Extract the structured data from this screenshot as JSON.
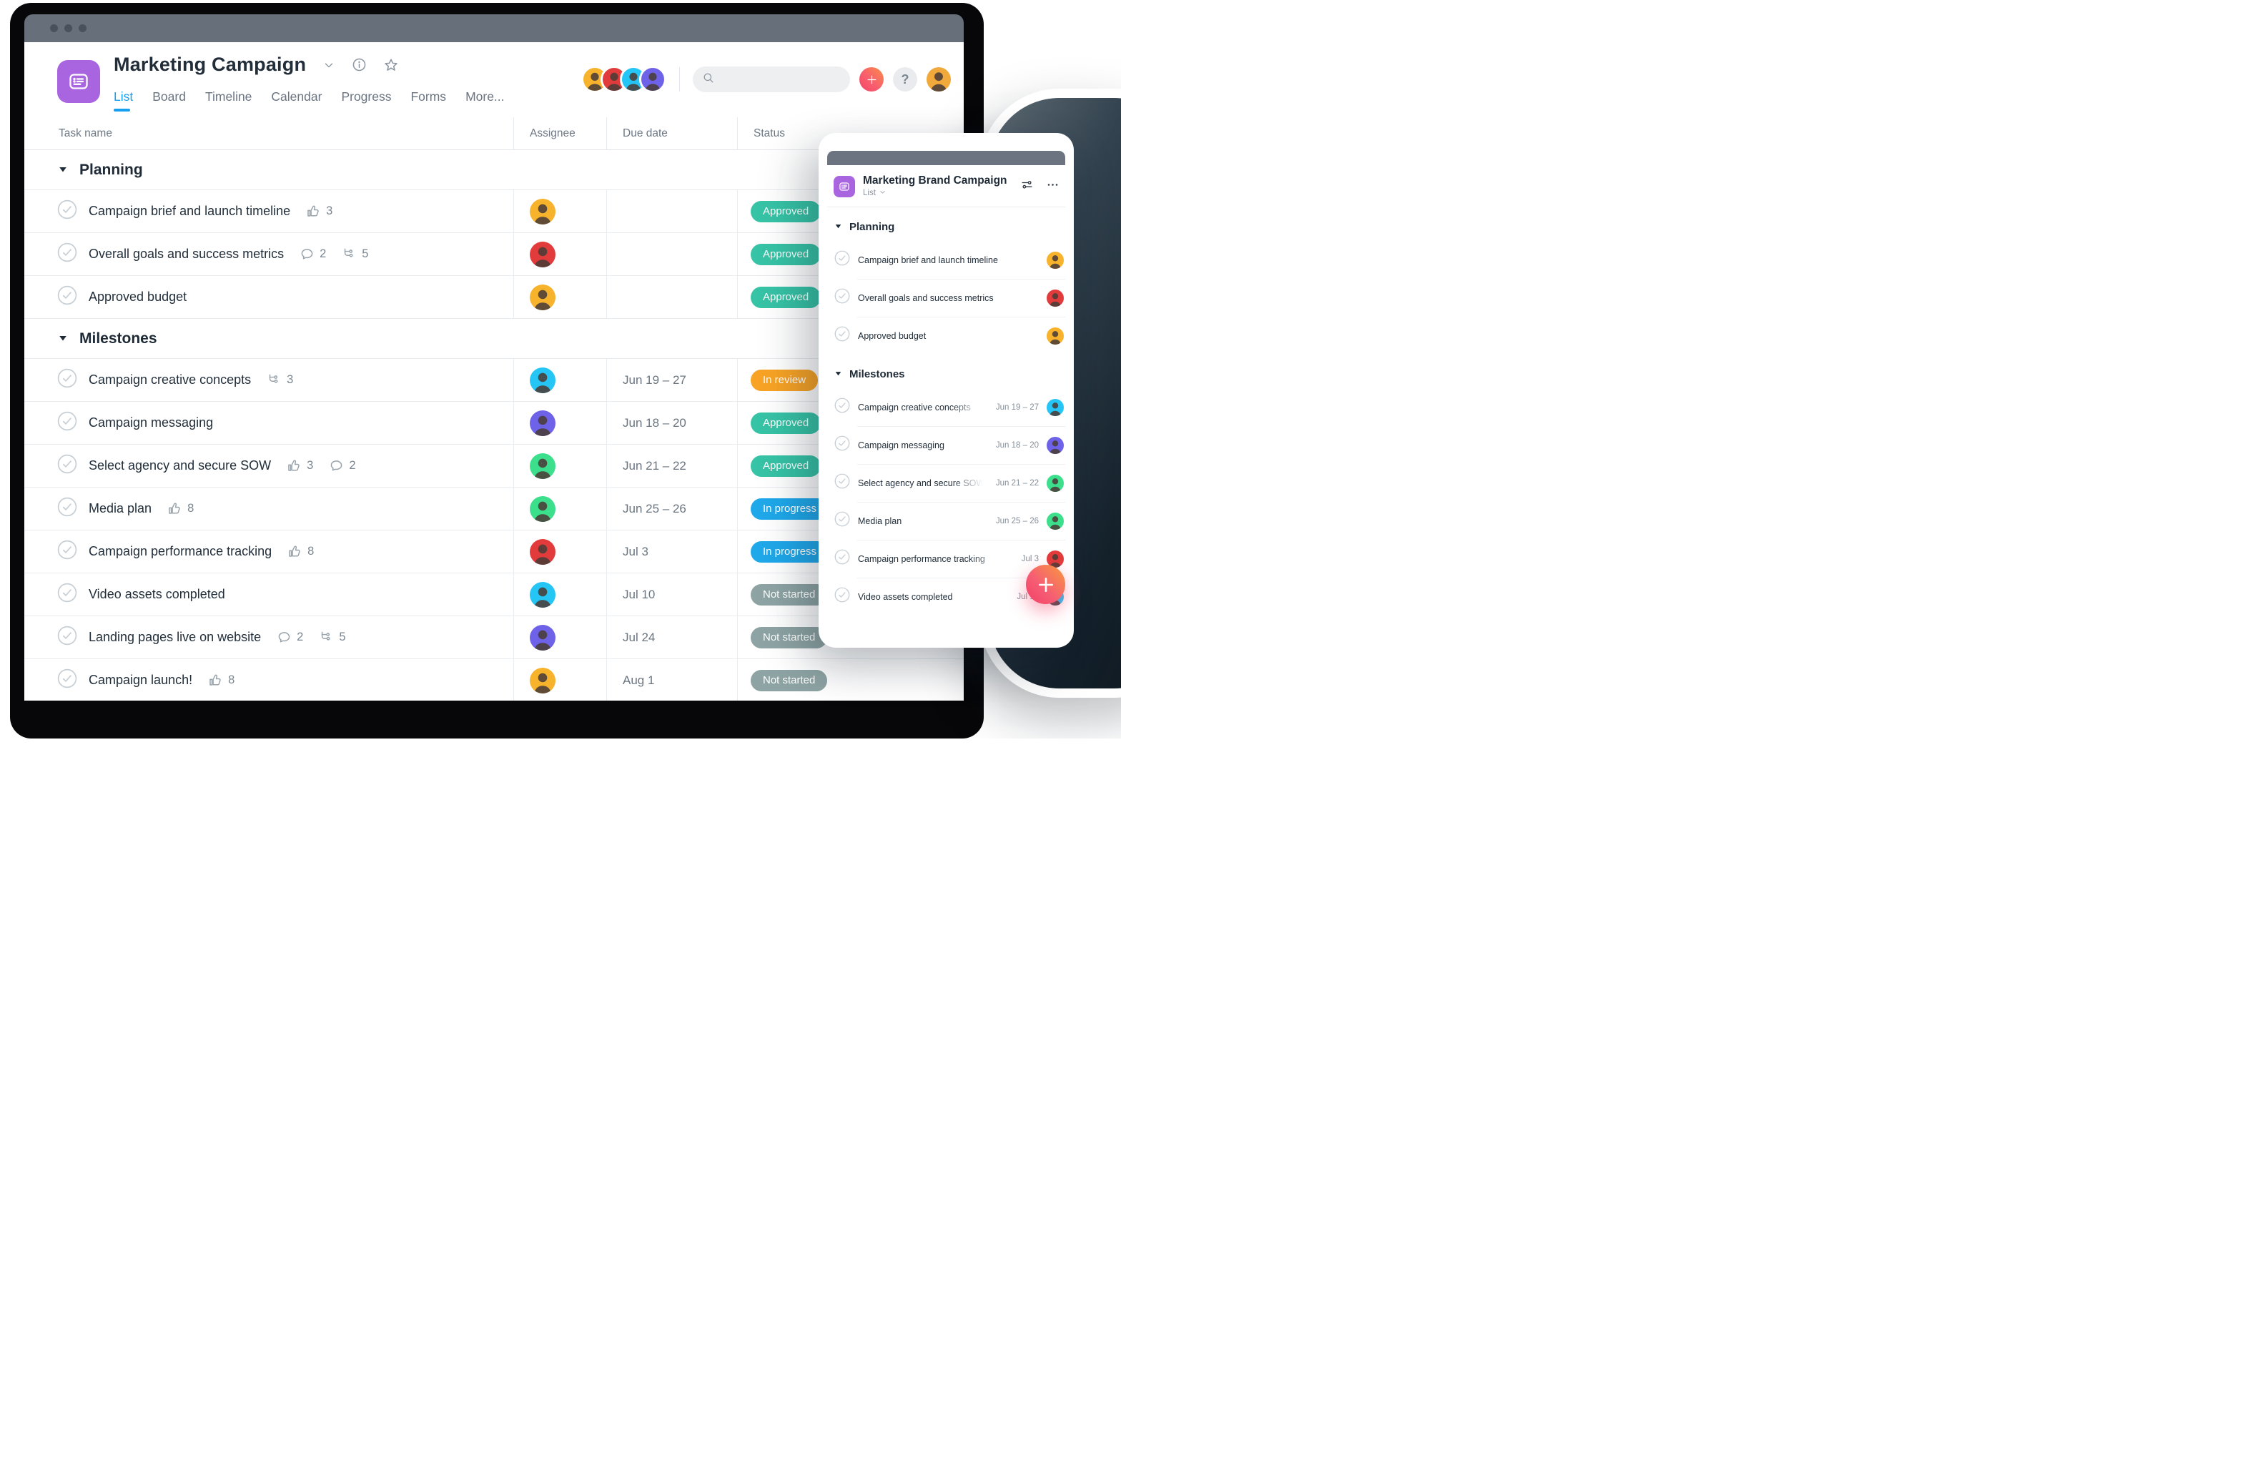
{
  "window": {
    "title": "browser window",
    "traffic_dots": 3
  },
  "header": {
    "project_title": "Marketing Campaign",
    "tabs": [
      {
        "label": "List",
        "active": true
      },
      {
        "label": "Board",
        "active": false
      },
      {
        "label": "Timeline",
        "active": false
      },
      {
        "label": "Calendar",
        "active": false
      },
      {
        "label": "Progress",
        "active": false
      },
      {
        "label": "Forms",
        "active": false
      },
      {
        "label": "More...",
        "active": false
      }
    ],
    "search": {
      "placeholder": ""
    },
    "plus_label": "+",
    "help_label": "?"
  },
  "member_avatars": [
    {
      "color": "#f7b32b"
    },
    {
      "color": "#e23b3b"
    },
    {
      "color": "#25c5f5"
    },
    {
      "color": "#6e63e8"
    }
  ],
  "profile_avatar": {
    "color": "#f2a93c"
  },
  "status_colors": {
    "approved": "#37c3a6",
    "in_review": "#f8a325",
    "in_progress": "#1fa8ea",
    "not_started": "#8ea4a4"
  },
  "table": {
    "columns": [
      "Task name",
      "Assignee",
      "Due date",
      "Status"
    ],
    "sections": [
      {
        "title": "Planning",
        "rows": [
          {
            "name": "Campaign brief and launch timeline",
            "likes": 3,
            "assignee": "#f7b32b",
            "due": "",
            "status": "Approved",
            "status_key": "approved"
          },
          {
            "name": "Overall goals and success metrics",
            "comments": 2,
            "subtasks": 5,
            "assignee": "#e23b3b",
            "due": "",
            "status": "Approved",
            "status_key": "approved"
          },
          {
            "name": "Approved budget",
            "assignee": "#f7b32b",
            "due": "",
            "status": "Approved",
            "status_key": "approved"
          }
        ]
      },
      {
        "title": "Milestones",
        "rows": [
          {
            "name": "Campaign creative concepts",
            "subtasks": 3,
            "assignee": "#25c5f5",
            "due": "Jun 19 – 27",
            "status": "In review",
            "status_key": "in_review"
          },
          {
            "name": "Campaign messaging",
            "assignee": "#6e63e8",
            "due": "Jun 18 – 20",
            "status": "Approved",
            "status_key": "approved"
          },
          {
            "name": "Select agency and secure SOW",
            "likes": 3,
            "comments": 2,
            "assignee": "#3ce08c",
            "due": "Jun 21 – 22",
            "status": "Approved",
            "status_key": "approved"
          },
          {
            "name": "Media plan",
            "likes": 8,
            "assignee": "#3ce08c",
            "due": "Jun 25 – 26",
            "status": "In progress",
            "status_key": "in_progress"
          },
          {
            "name": "Campaign performance tracking",
            "likes": 8,
            "assignee": "#e23b3b",
            "due": "Jul 3",
            "status": "In progress",
            "status_key": "in_progress"
          },
          {
            "name": "Video assets completed",
            "assignee": "#25c5f5",
            "due": "Jul 10",
            "status": "Not started",
            "status_key": "not_started"
          },
          {
            "name": "Landing pages live on website",
            "comments": 2,
            "subtasks": 5,
            "assignee": "#6e63e8",
            "due": "Jul 24",
            "status": "Not started",
            "status_key": "not_started"
          },
          {
            "name": "Campaign launch!",
            "likes": 8,
            "assignee": "#f7b32b",
            "due": "Aug 1",
            "status": "Not started",
            "status_key": "not_started"
          }
        ]
      }
    ]
  },
  "mobile": {
    "title": "Marketing Brand Campaign",
    "view_label": "List",
    "sections": [
      {
        "title": "Planning",
        "rows": [
          {
            "name": "Campaign brief and launch timeline",
            "due": "",
            "avatar": "#f7b32b"
          },
          {
            "name": "Overall goals and success metrics",
            "due": "",
            "avatar": "#e23b3b"
          },
          {
            "name": "Approved budget",
            "due": "",
            "avatar": "#f7b32b"
          }
        ]
      },
      {
        "title": "Milestones",
        "rows": [
          {
            "name": "Campaign creative concepts",
            "due": "Jun 19 – 27",
            "avatar": "#25c5f5"
          },
          {
            "name": "Campaign messaging",
            "due": "Jun 18 – 20",
            "avatar": "#6e63e8"
          },
          {
            "name": "Select agency and secure SOW",
            "due": "Jun 21 – 22",
            "avatar": "#3ce08c"
          },
          {
            "name": "Media plan",
            "due": "Jun 25 – 26",
            "avatar": "#3ce08c"
          },
          {
            "name": "Campaign performance tracking",
            "due": "Jul 3",
            "avatar": "#e23b3b"
          },
          {
            "name": "Video assets completed",
            "due": "Jul 10",
            "avatar": "#25c5f5"
          }
        ]
      }
    ]
  },
  "icons": {
    "project_icon": "list-board",
    "chevron_down": "⌄",
    "info": "i",
    "star": "☆",
    "search": "magnifier",
    "plus": "+",
    "help": "?",
    "like": "thumbs-up",
    "comment": "speech-bubble",
    "subtasks": "branch",
    "check": "✓",
    "collapse_triangle": "▾",
    "sliders": "tune",
    "ellipsis": "…",
    "fab_plus": "+"
  }
}
